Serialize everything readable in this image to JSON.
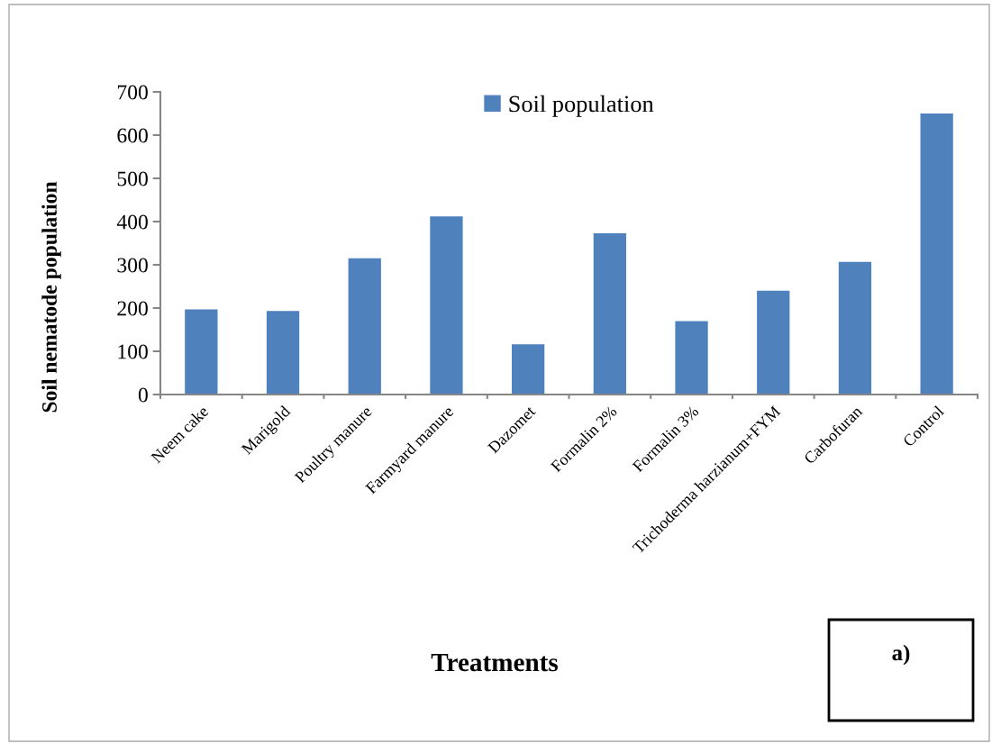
{
  "chart_data": {
    "type": "bar",
    "xlabel": "Treatments",
    "ylabel": "Soil nematode population",
    "categories": [
      "Neem cake",
      "Marigold",
      "Poultry manure",
      "Farmyard manure",
      "Dazomet",
      "Formalin 2%",
      "Formalin 3%",
      "Trichoderma harzianum+FYM",
      "Carbofuran",
      "Control"
    ],
    "series": [
      {
        "name": "Soil population",
        "color": "#4f81bd",
        "values": [
          197,
          193,
          315,
          412,
          116,
          373,
          170,
          240,
          307,
          650
        ]
      }
    ],
    "ylim": [
      0,
      700
    ],
    "yticks": [
      0,
      100,
      200,
      300,
      400,
      500,
      600,
      700
    ],
    "grid": false,
    "legend": "top",
    "annotations": [
      "a)"
    ]
  }
}
